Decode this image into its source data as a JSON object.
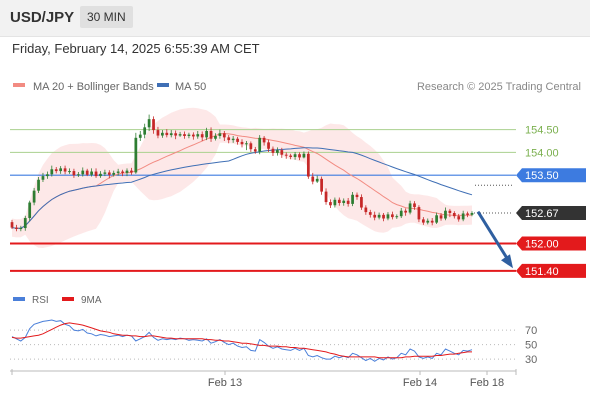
{
  "header": {
    "symbol": "USD/JPY",
    "timeframe": "30 MIN"
  },
  "datetime": "Friday, February 14, 2025 6:55:39 AM CET",
  "legend": {
    "bb_label": "MA 20 + Bollinger Bands",
    "ma50_label": "MA 50"
  },
  "copyright": "Research © 2025 Trading Central",
  "colors": {
    "bull": "#2e7d32",
    "bear": "#c62828",
    "ma20": "#f28b82",
    "ma50": "#3f6fb5",
    "band": "#fde4e4",
    "resistance": "#a9d18e",
    "pivot": "#3d7be0",
    "support": "#e31a1c",
    "arrow": "#2f5fa0",
    "current": "#333333",
    "rsi": "#4a7fd9",
    "rsi_ma": "#e31a1c"
  },
  "chart_data": [
    {
      "type": "candlestick",
      "xlabels": [
        "Feb 13",
        "Feb 14",
        "Feb 18"
      ],
      "ylim": [
        151.2,
        155.15
      ],
      "price_levels": [
        {
          "label": "154.50",
          "value": 154.5,
          "kind": "resistance"
        },
        {
          "label": "154.00",
          "value": 154.0,
          "kind": "resistance"
        },
        {
          "label": "153.50",
          "value": 153.5,
          "kind": "pivot"
        },
        {
          "label": "152.00",
          "value": 152.0,
          "kind": "support"
        },
        {
          "label": "151.40",
          "value": 151.4,
          "kind": "support"
        }
      ],
      "current_price": {
        "label": "152.67",
        "value": 152.67
      },
      "arrow": {
        "from": 152.7,
        "to": 151.48
      },
      "candles": [
        [
          152.47,
          152.35,
          152.52,
          152.32
        ],
        [
          152.35,
          152.32,
          152.41,
          152.27
        ],
        [
          152.32,
          152.34,
          152.39,
          152.27
        ],
        [
          152.34,
          152.56,
          152.61,
          152.28
        ],
        [
          152.56,
          152.9,
          152.94,
          152.49
        ],
        [
          152.9,
          153.16,
          153.22,
          152.84
        ],
        [
          153.16,
          153.4,
          153.46,
          153.11
        ],
        [
          153.4,
          153.48,
          153.55,
          153.35
        ],
        [
          153.48,
          153.52,
          153.58,
          153.42
        ],
        [
          153.52,
          153.63,
          153.71,
          153.47
        ],
        [
          153.63,
          153.59,
          153.68,
          153.54
        ],
        [
          153.59,
          153.65,
          153.7,
          153.53
        ],
        [
          153.65,
          153.58,
          153.71,
          153.52
        ],
        [
          153.58,
          153.59,
          153.65,
          153.53
        ],
        [
          153.59,
          153.5,
          153.64,
          153.44
        ],
        [
          153.5,
          153.52,
          153.57,
          153.46
        ],
        [
          153.52,
          153.6,
          153.67,
          153.47
        ],
        [
          153.6,
          153.51,
          153.64,
          153.48
        ],
        [
          153.51,
          153.58,
          153.65,
          153.47
        ],
        [
          153.58,
          153.48,
          153.65,
          153.44
        ],
        [
          153.48,
          153.53,
          153.59,
          153.44
        ],
        [
          153.53,
          153.56,
          153.62,
          153.48
        ],
        [
          153.56,
          153.51,
          153.61,
          153.43
        ],
        [
          153.51,
          153.55,
          153.6,
          153.47
        ],
        [
          153.55,
          153.58,
          153.64,
          153.49
        ],
        [
          153.58,
          153.55,
          153.62,
          153.48
        ],
        [
          153.55,
          153.6,
          153.65,
          153.48
        ],
        [
          153.6,
          153.56,
          153.66,
          153.51
        ],
        [
          153.56,
          154.32,
          154.43,
          153.53
        ],
        [
          154.32,
          154.39,
          154.47,
          154.25
        ],
        [
          154.39,
          154.55,
          154.63,
          154.31
        ],
        [
          154.55,
          154.73,
          154.83,
          154.47
        ],
        [
          154.73,
          154.49,
          154.79,
          154.41
        ],
        [
          154.49,
          154.37,
          154.56,
          154.31
        ],
        [
          154.37,
          154.43,
          154.49,
          154.32
        ],
        [
          154.43,
          154.38,
          154.51,
          154.33
        ],
        [
          154.38,
          154.42,
          154.49,
          154.33
        ],
        [
          154.42,
          154.37,
          154.48,
          154.29
        ],
        [
          154.37,
          154.4,
          154.45,
          154.34
        ],
        [
          154.4,
          154.36,
          154.46,
          154.3
        ],
        [
          154.36,
          154.39,
          154.43,
          154.31
        ],
        [
          154.39,
          154.35,
          154.44,
          154.28
        ],
        [
          154.35,
          154.4,
          154.47,
          154.3
        ],
        [
          154.4,
          154.33,
          154.46,
          154.25
        ],
        [
          154.33,
          154.47,
          154.54,
          154.27
        ],
        [
          154.47,
          154.3,
          154.55,
          154.23
        ],
        [
          154.3,
          154.36,
          154.42,
          154.26
        ],
        [
          154.36,
          154.42,
          154.5,
          154.3
        ],
        [
          154.42,
          154.33,
          154.47,
          154.25
        ],
        [
          154.33,
          154.27,
          154.38,
          154.2
        ],
        [
          154.27,
          154.3,
          154.36,
          154.21
        ],
        [
          154.3,
          154.23,
          154.34,
          154.17
        ],
        [
          154.23,
          154.18,
          154.29,
          154.11
        ],
        [
          154.18,
          154.2,
          154.25,
          154.05
        ],
        [
          154.2,
          154.07,
          154.24,
          154.01
        ],
        [
          154.07,
          154.02,
          154.12,
          153.97
        ],
        [
          154.02,
          154.32,
          154.38,
          153.96
        ],
        [
          154.32,
          154.22,
          154.36,
          154.15
        ],
        [
          154.22,
          154.08,
          154.28,
          154.01
        ],
        [
          154.08,
          153.99,
          154.13,
          153.92
        ],
        [
          153.99,
          154.05,
          154.11,
          153.93
        ],
        [
          154.05,
          153.95,
          154.1,
          153.88
        ],
        [
          153.95,
          153.93,
          154.0,
          153.86
        ],
        [
          153.93,
          153.9,
          153.97,
          153.85
        ],
        [
          153.9,
          153.96,
          154.01,
          153.84
        ],
        [
          153.96,
          153.89,
          154.0,
          153.83
        ],
        [
          153.89,
          153.97,
          154.02,
          153.87
        ],
        [
          153.97,
          153.47,
          154.02,
          153.42
        ],
        [
          153.47,
          153.36,
          153.55,
          153.3
        ],
        [
          153.36,
          153.42,
          153.49,
          153.33
        ],
        [
          153.42,
          153.14,
          153.47,
          153.07
        ],
        [
          153.14,
          152.91,
          153.21,
          152.85
        ],
        [
          152.91,
          152.84,
          152.97,
          152.78
        ],
        [
          152.84,
          152.96,
          153.01,
          152.79
        ],
        [
          152.96,
          152.89,
          153.01,
          152.83
        ],
        [
          152.89,
          152.94,
          152.99,
          152.83
        ],
        [
          152.94,
          152.87,
          153.0,
          152.81
        ],
        [
          152.87,
          153.07,
          153.13,
          152.82
        ],
        [
          153.07,
          153.02,
          153.12,
          152.96
        ],
        [
          153.02,
          152.79,
          153.08,
          152.74
        ],
        [
          152.79,
          152.69,
          152.84,
          152.63
        ],
        [
          152.69,
          152.63,
          152.74,
          152.57
        ],
        [
          152.63,
          152.57,
          152.7,
          152.51
        ],
        [
          152.57,
          152.63,
          152.68,
          152.53
        ],
        [
          152.63,
          152.55,
          152.67,
          152.49
        ],
        [
          152.55,
          152.64,
          152.69,
          152.51
        ],
        [
          152.64,
          152.58,
          152.7,
          152.53
        ],
        [
          152.58,
          152.6,
          152.64,
          152.54
        ],
        [
          152.6,
          152.72,
          152.78,
          152.56
        ],
        [
          152.72,
          152.68,
          152.77,
          152.61
        ],
        [
          152.68,
          152.88,
          152.94,
          152.64
        ],
        [
          152.88,
          152.8,
          152.93,
          152.74
        ],
        [
          152.8,
          152.53,
          152.84,
          152.47
        ],
        [
          152.53,
          152.46,
          152.58,
          152.41
        ],
        [
          152.46,
          152.5,
          152.55,
          152.42
        ],
        [
          152.5,
          152.46,
          152.56,
          152.4
        ],
        [
          152.46,
          152.62,
          152.68,
          152.43
        ],
        [
          152.62,
          152.55,
          152.67,
          152.5
        ],
        [
          152.55,
          152.72,
          152.79,
          152.51
        ],
        [
          152.72,
          152.67,
          152.76,
          152.58
        ],
        [
          152.67,
          152.6,
          152.71,
          152.55
        ],
        [
          152.6,
          152.53,
          152.65,
          152.48
        ],
        [
          152.53,
          152.66,
          152.72,
          152.49
        ],
        [
          152.66,
          152.63,
          152.7,
          152.58
        ],
        [
          152.63,
          152.67,
          152.71,
          152.6
        ]
      ]
    },
    {
      "type": "line",
      "series": [
        {
          "name": "RSI",
          "values": [
            61,
            58,
            55,
            60,
            72,
            78,
            80,
            82,
            83,
            84,
            82,
            83,
            78,
            76,
            70,
            69,
            71,
            66,
            65,
            62,
            64,
            63,
            61,
            62,
            63,
            61,
            63,
            62,
            55,
            58,
            61,
            67,
            60,
            56,
            58,
            57,
            58,
            57,
            59,
            58,
            56,
            57,
            56,
            55,
            58,
            52,
            54,
            57,
            53,
            50,
            52,
            48,
            46,
            47,
            42,
            41,
            57,
            53,
            48,
            45,
            47,
            44,
            43,
            42,
            45,
            42,
            45,
            35,
            33,
            35,
            32,
            30,
            30,
            34,
            32,
            34,
            32,
            38,
            36,
            32,
            28,
            31,
            27,
            31,
            29,
            33,
            30,
            32,
            38,
            36,
            44,
            41,
            33,
            31,
            33,
            31,
            38,
            36,
            44,
            41,
            38,
            36,
            42,
            41,
            43
          ]
        },
        {
          "name": "9MA",
          "values": [
            60,
            59,
            59,
            60,
            61,
            62,
            63,
            65,
            68,
            71,
            74,
            77,
            79,
            80,
            79,
            78,
            77,
            75,
            73,
            71,
            69,
            68,
            67,
            65,
            64,
            63,
            63,
            62,
            62,
            61,
            61,
            62,
            62,
            61,
            60,
            59,
            59,
            58,
            58,
            58,
            58,
            58,
            58,
            58,
            57,
            57,
            56,
            56,
            55,
            55,
            54,
            53,
            52,
            52,
            51,
            50,
            49,
            49,
            48,
            48,
            48,
            47,
            47,
            46,
            46,
            45,
            45,
            44,
            43,
            42,
            41,
            40,
            38,
            37,
            35,
            34,
            33,
            33,
            33,
            33,
            33,
            33,
            33,
            32,
            32,
            32,
            32,
            32,
            32,
            33,
            33,
            34,
            34,
            34,
            34,
            34,
            35,
            35,
            36,
            37,
            37,
            38,
            39,
            40,
            40
          ]
        }
      ],
      "y_ticks": [
        "70",
        "50",
        "30"
      ],
      "ylim": [
        15,
        95
      ]
    }
  ]
}
